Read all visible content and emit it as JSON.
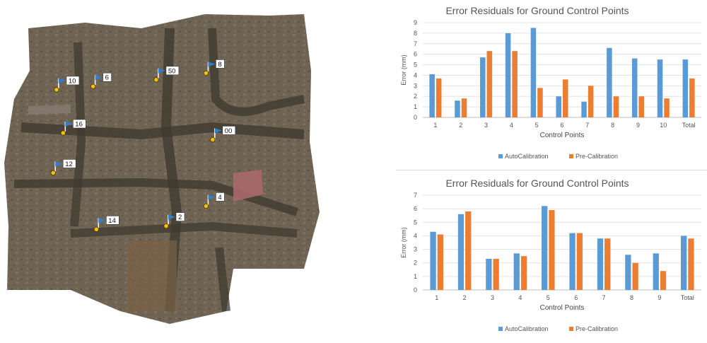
{
  "map": {
    "marker_icon": "flag-marker-icon",
    "pin_color": "#f2c200",
    "flag_color": "#2f7fd0",
    "markers": [
      {
        "label": "10",
        "x": 0.17,
        "y": 0.27
      },
      {
        "label": "6",
        "x": 0.28,
        "y": 0.26
      },
      {
        "label": "50",
        "x": 0.47,
        "y": 0.24
      },
      {
        "label": "8",
        "x": 0.62,
        "y": 0.22
      },
      {
        "label": "16",
        "x": 0.19,
        "y": 0.4
      },
      {
        "label": "00",
        "x": 0.64,
        "y": 0.42
      },
      {
        "label": "12",
        "x": 0.16,
        "y": 0.52
      },
      {
        "label": "4",
        "x": 0.62,
        "y": 0.62
      },
      {
        "label": "14",
        "x": 0.29,
        "y": 0.69
      },
      {
        "label": "2",
        "x": 0.5,
        "y": 0.68
      }
    ]
  },
  "chart_data": [
    {
      "type": "bar",
      "title": "Error Residuals for Ground Control Points",
      "xlabel": "Control Points",
      "ylabel": "Error (mm)",
      "ylim": [
        0,
        9
      ],
      "yticks": [
        0,
        1,
        2,
        3,
        4,
        5,
        6,
        7,
        8,
        9
      ],
      "categories": [
        "1",
        "2",
        "3",
        "4",
        "5",
        "6",
        "7",
        "8",
        "9",
        "10",
        "Total"
      ],
      "grid": true,
      "legend": "bottom",
      "series": [
        {
          "name": "AutoCalibration",
          "color": "#5b9bd5",
          "values": [
            4.1,
            1.6,
            5.7,
            8.0,
            8.5,
            2.0,
            1.5,
            6.6,
            5.6,
            5.5,
            5.5
          ]
        },
        {
          "name": "Pre-Calibration",
          "color": "#ed7d31",
          "values": [
            3.7,
            1.8,
            6.3,
            6.3,
            2.8,
            3.6,
            3.0,
            2.0,
            2.0,
            1.8,
            3.7
          ]
        }
      ]
    },
    {
      "type": "bar",
      "title": "Error Residuals for Ground Control Points",
      "xlabel": "Control Points",
      "ylabel": "Error (mm)",
      "ylim": [
        0,
        7
      ],
      "yticks": [
        0,
        1,
        2,
        3,
        4,
        5,
        6,
        7
      ],
      "categories": [
        "1",
        "2",
        "3",
        "4",
        "5",
        "6",
        "7",
        "8",
        "9",
        "Total"
      ],
      "grid": true,
      "legend": "bottom",
      "series": [
        {
          "name": "AutoCalibration",
          "color": "#5b9bd5",
          "values": [
            4.3,
            5.6,
            2.3,
            2.7,
            6.2,
            4.2,
            3.8,
            2.6,
            2.7,
            4.0
          ]
        },
        {
          "name": "Pre-Calibration",
          "color": "#ed7d31",
          "values": [
            4.1,
            5.8,
            2.3,
            2.5,
            5.9,
            4.2,
            3.8,
            2.0,
            1.4,
            3.8
          ]
        }
      ]
    }
  ]
}
